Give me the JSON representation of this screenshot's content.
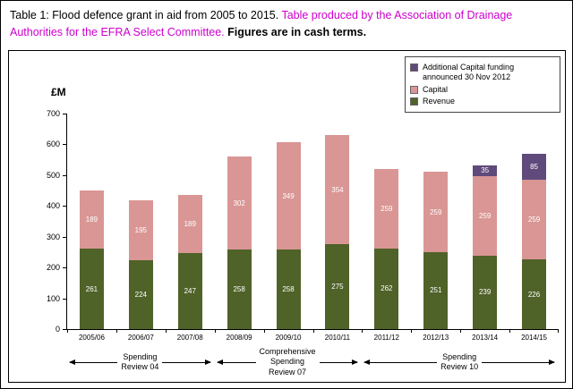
{
  "title": {
    "part1": "Table 1: Flood defence grant in aid from 2005 to 2015. ",
    "part2": "Table produced by the Association of Drainage Authorities for the EFRA Select Committee. ",
    "part3": "Figures are in cash terms."
  },
  "chart_data": {
    "type": "bar",
    "stacked": true,
    "ylabel": "£M",
    "ylim": [
      0,
      700
    ],
    "yticks": [
      0,
      100,
      200,
      300,
      400,
      500,
      600,
      700
    ],
    "grid": false,
    "legend_position": "top-right",
    "categories": [
      "2005/06",
      "2006/07",
      "2007/08",
      "2008/09",
      "2009/10",
      "2010/11",
      "2011/12",
      "2012/13",
      "2013/14",
      "2014/15"
    ],
    "series": [
      {
        "name": "Revenue",
        "color": "#4f6228",
        "values": [
          261,
          224,
          247,
          258,
          258,
          275,
          262,
          251,
          239,
          226
        ]
      },
      {
        "name": "Capital",
        "color": "#d99694",
        "values": [
          189,
          195,
          189,
          302,
          349,
          354,
          259,
          259,
          259,
          259
        ]
      },
      {
        "name": "Additional Capital funding announced 30 Nov 2012",
        "color": "#604a7b",
        "values": [
          0,
          0,
          0,
          0,
          0,
          0,
          0,
          0,
          35,
          85
        ]
      }
    ],
    "legend": [
      {
        "label": "Additional Capital funding announced 30 Nov 2012",
        "color": "#604a7b"
      },
      {
        "label": "Capital",
        "color": "#d99694"
      },
      {
        "label": "Revenue",
        "color": "#4f6228"
      }
    ],
    "annotations": [
      {
        "lines": [
          "Spending",
          "Review 04"
        ],
        "from": 0,
        "to": 2
      },
      {
        "lines": [
          "Comprehensive",
          "Spending",
          "Review 07"
        ],
        "from": 3,
        "to": 5
      },
      {
        "lines": [
          "Spending",
          "Review 10"
        ],
        "from": 6,
        "to": 9
      }
    ]
  }
}
